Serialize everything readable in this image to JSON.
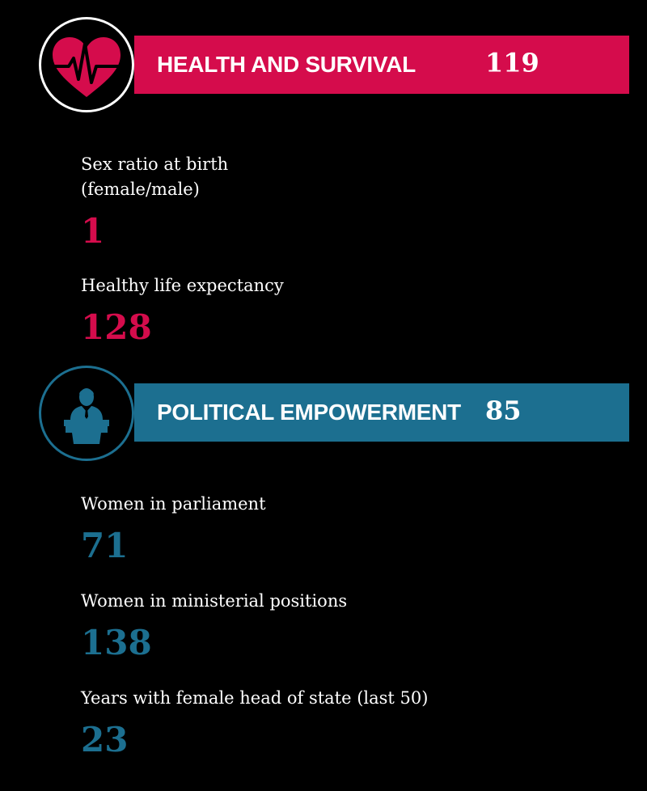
{
  "colors": {
    "health": "#d50c4c",
    "political": "#1c6f90",
    "background": "#000000",
    "text": "#ffffff"
  },
  "health": {
    "icon": "heartbeat-icon",
    "title": "HEALTH AND SURVIVAL",
    "rank": "119",
    "items": [
      {
        "label_line1": "Sex ratio at birth",
        "label_line2": "(female/male)",
        "value": "1"
      },
      {
        "label": "Healthy life expectancy",
        "value": "128"
      }
    ]
  },
  "political": {
    "icon": "speaker-at-podium-icon",
    "title": "POLITICAL EMPOWERMENT",
    "rank": "85",
    "items": [
      {
        "label": "Women in parliament",
        "value": "71"
      },
      {
        "label": "Women in ministerial positions",
        "value": "138"
      },
      {
        "label": "Years with female head of state (last 50)",
        "value": "23"
      }
    ]
  }
}
